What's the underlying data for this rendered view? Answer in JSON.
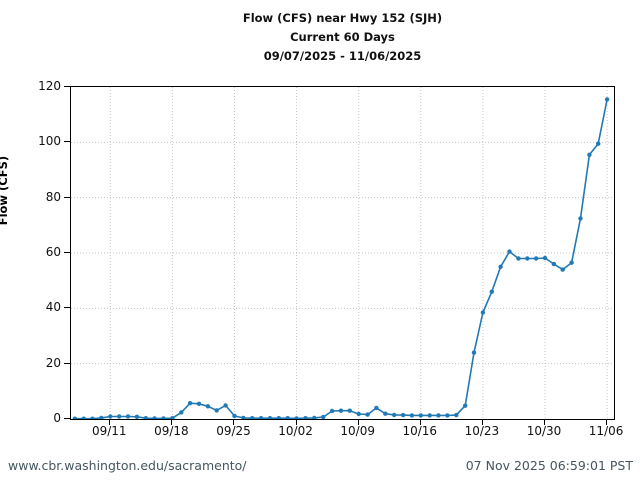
{
  "title": {
    "line1": "Flow (CFS) near Hwy 152 (SJH)",
    "line2": "Current 60 Days",
    "line3": "09/07/2025 - 11/06/2025"
  },
  "footer": {
    "url": "www.cbr.washington.edu/sacramento/",
    "timestamp": "07 Nov 2025 06:59:01 PST"
  },
  "chart_data": {
    "type": "line",
    "title": "Flow (CFS) near Hwy 152 (SJH) — Current 60 Days — 09/07/2025 - 11/06/2025",
    "xlabel": "",
    "ylabel": "Flow (CFS)",
    "ylim": [
      0,
      120
    ],
    "yticks": [
      0,
      20,
      40,
      60,
      80,
      100,
      120
    ],
    "grid": true,
    "legend": false,
    "line_color": "#2179b5",
    "grid_color": "#c6c6c6",
    "xtick_labels": [
      "09/11",
      "09/18",
      "09/25",
      "10/02",
      "10/09",
      "10/16",
      "10/23",
      "10/30",
      "11/06"
    ],
    "xtick_day_index": [
      4,
      11,
      18,
      25,
      32,
      39,
      46,
      53,
      60
    ],
    "x": [
      "09/07",
      "09/08",
      "09/09",
      "09/10",
      "09/11",
      "09/12",
      "09/13",
      "09/14",
      "09/15",
      "09/16",
      "09/17",
      "09/18",
      "09/19",
      "09/20",
      "09/21",
      "09/22",
      "09/23",
      "09/24",
      "09/25",
      "09/26",
      "09/27",
      "09/28",
      "09/29",
      "09/30",
      "10/01",
      "10/02",
      "10/03",
      "10/04",
      "10/05",
      "10/06",
      "10/07",
      "10/08",
      "10/09",
      "10/10",
      "10/11",
      "10/12",
      "10/13",
      "10/14",
      "10/15",
      "10/16",
      "10/17",
      "10/18",
      "10/19",
      "10/20",
      "10/21",
      "10/22",
      "10/23",
      "10/24",
      "10/25",
      "10/26",
      "10/27",
      "10/28",
      "10/29",
      "10/30",
      "10/31",
      "11/01",
      "11/02",
      "11/03",
      "11/04",
      "11/05",
      "11/06"
    ],
    "values": [
      0.1,
      0.1,
      0.1,
      0.4,
      0.9,
      0.9,
      0.9,
      0.8,
      0.3,
      0.2,
      0.2,
      0.3,
      2.4,
      5.7,
      5.5,
      4.6,
      3.1,
      4.9,
      1.1,
      0.4,
      0.3,
      0.3,
      0.3,
      0.3,
      0.3,
      0.2,
      0.3,
      0.4,
      0.7,
      2.9,
      3.0,
      3.0,
      1.8,
      1.6,
      4.0,
      1.9,
      1.5,
      1.4,
      1.3,
      1.3,
      1.3,
      1.3,
      1.3,
      1.4,
      4.8,
      24,
      38.5,
      46,
      55,
      60.5,
      58,
      58,
      58,
      58.2,
      56,
      54,
      56.5,
      72.5,
      95.5,
      99.5,
      115.5
    ]
  }
}
